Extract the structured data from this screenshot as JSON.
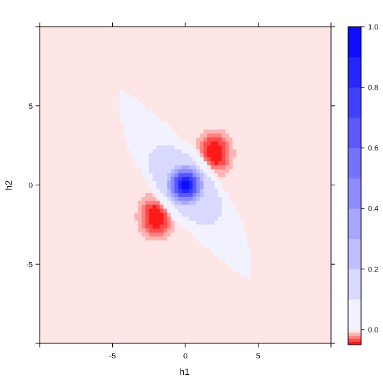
{
  "chart_data": {
    "type": "heatmap",
    "title": "",
    "xlabel": "h1",
    "ylabel": "h2",
    "xlim": [
      -10,
      10
    ],
    "ylim": [
      -10,
      10
    ],
    "x_ticks": [
      -5,
      0,
      5
    ],
    "y_ticks": [
      -5,
      0,
      5
    ],
    "x_tick_labels": [
      "-5",
      "0",
      "5"
    ],
    "y_tick_labels": [
      "-5",
      "0",
      "5"
    ],
    "colorbar": {
      "range": [
        -0.05,
        1.0
      ],
      "ticks": [
        0.0,
        0.2,
        0.4,
        0.6,
        0.8,
        1.0
      ],
      "tick_labels": [
        "0.0",
        "0.2",
        "0.4",
        "0.6",
        "0.8",
        "1.0"
      ],
      "levels": [
        -0.05,
        -0.04,
        -0.03,
        -0.02,
        -0.01,
        0.0,
        0.1,
        0.2,
        0.3,
        0.4,
        0.5,
        0.6,
        0.7,
        0.8,
        0.9,
        1.0
      ],
      "negative_color": "#ff0000",
      "positive_color": "#0000ff",
      "zero_color": "#ffffff"
    },
    "features": [
      {
        "type": "positive peak",
        "center": [
          0,
          0
        ],
        "max_value": 1.0
      },
      {
        "type": "positive halo",
        "center": [
          0,
          0
        ],
        "value": 0.1,
        "orientation": "diagonal h1 = -h2"
      },
      {
        "type": "negative lobe",
        "center": [
          2,
          2
        ],
        "min_value": -0.05
      },
      {
        "type": "negative lobe",
        "center": [
          -2,
          -2
        ],
        "min_value": -0.05
      }
    ],
    "background_value": 0.05,
    "grid": false,
    "legend": "colorbar right"
  }
}
